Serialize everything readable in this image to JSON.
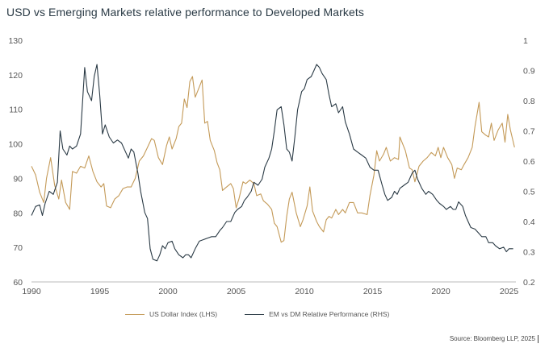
{
  "title": "USD vs Emerging Markets relative performance to Developed Markets",
  "source": "Source: Bloomberg LLP, 2025",
  "colors": {
    "usd": "#c49a58",
    "em": "#2a3a45",
    "axis": "#bbbbbb"
  },
  "chart_data": {
    "type": "line",
    "title": "USD vs Emerging Markets relative performance to Developed Markets",
    "xlim": [
      1990,
      2025.5
    ],
    "x_ticks": [
      "1990",
      "1995",
      "2000",
      "2005",
      "2010",
      "2015",
      "2020",
      "2025"
    ],
    "y_left": {
      "lim": [
        60,
        130
      ],
      "ticks": [
        "60",
        "70",
        "80",
        "90",
        "100",
        "110",
        "120",
        "130"
      ]
    },
    "y_right": {
      "lim": [
        0.2,
        1.0
      ],
      "ticks": [
        "0.2",
        "0.3",
        "0.4",
        "0.5",
        "0.6",
        "0.7",
        "0.8",
        "0.9",
        "1"
      ]
    },
    "grid": false,
    "legend_position": "bottom",
    "series": [
      {
        "name": "US Dollar Index (LHS)",
        "axis": "left",
        "points": [
          [
            1990.0,
            93.5
          ],
          [
            1990.3,
            91
          ],
          [
            1990.6,
            86
          ],
          [
            1990.9,
            83
          ],
          [
            1991.1,
            90
          ],
          [
            1991.4,
            96
          ],
          [
            1991.7,
            88
          ],
          [
            1992.0,
            84
          ],
          [
            1992.2,
            89.5
          ],
          [
            1992.5,
            83
          ],
          [
            1992.8,
            81
          ],
          [
            1993.0,
            92
          ],
          [
            1993.3,
            91.5
          ],
          [
            1993.6,
            93.5
          ],
          [
            1993.9,
            93
          ],
          [
            1994.2,
            96.5
          ],
          [
            1994.5,
            92
          ],
          [
            1994.8,
            89
          ],
          [
            1995.1,
            87.5
          ],
          [
            1995.3,
            88.5
          ],
          [
            1995.5,
            82
          ],
          [
            1995.8,
            81.5
          ],
          [
            1996.1,
            84
          ],
          [
            1996.4,
            85
          ],
          [
            1996.7,
            87
          ],
          [
            1997.0,
            87.5
          ],
          [
            1997.3,
            87.5
          ],
          [
            1997.6,
            90
          ],
          [
            1997.9,
            95
          ],
          [
            1998.2,
            96.5
          ],
          [
            1998.5,
            99
          ],
          [
            1998.8,
            101.5
          ],
          [
            1999.0,
            101
          ],
          [
            1999.3,
            96
          ],
          [
            1999.6,
            94
          ],
          [
            1999.9,
            99.5
          ],
          [
            2000.1,
            102
          ],
          [
            2000.3,
            98.5
          ],
          [
            2000.6,
            101.5
          ],
          [
            2000.8,
            105
          ],
          [
            2001.0,
            106
          ],
          [
            2001.2,
            113
          ],
          [
            2001.4,
            110.5
          ],
          [
            2001.6,
            118
          ],
          [
            2001.8,
            119.5
          ],
          [
            2002.0,
            113.5
          ],
          [
            2002.3,
            116.5
          ],
          [
            2002.5,
            118.5
          ],
          [
            2002.7,
            106
          ],
          [
            2002.9,
            106.5
          ],
          [
            2003.1,
            101
          ],
          [
            2003.4,
            98
          ],
          [
            2003.6,
            94.5
          ],
          [
            2003.8,
            92.5
          ],
          [
            2004.0,
            86.5
          ],
          [
            2004.3,
            87.5
          ],
          [
            2004.6,
            88.5
          ],
          [
            2004.8,
            87
          ],
          [
            2005.0,
            81.5
          ],
          [
            2005.2,
            84
          ],
          [
            2005.5,
            89
          ],
          [
            2005.7,
            88.5
          ],
          [
            2006.0,
            89.5
          ],
          [
            2006.3,
            88.5
          ],
          [
            2006.5,
            85
          ],
          [
            2006.8,
            85.5
          ],
          [
            2007.0,
            83.5
          ],
          [
            2007.3,
            82.5
          ],
          [
            2007.6,
            81
          ],
          [
            2007.8,
            77
          ],
          [
            2008.0,
            76
          ],
          [
            2008.3,
            71.5
          ],
          [
            2008.5,
            72
          ],
          [
            2008.7,
            79
          ],
          [
            2008.9,
            84
          ],
          [
            2009.1,
            86
          ],
          [
            2009.4,
            80
          ],
          [
            2009.7,
            76
          ],
          [
            2009.9,
            78
          ],
          [
            2010.2,
            82
          ],
          [
            2010.4,
            87.5
          ],
          [
            2010.6,
            80.5
          ],
          [
            2010.9,
            77.5
          ],
          [
            2011.1,
            76
          ],
          [
            2011.4,
            74.5
          ],
          [
            2011.6,
            78
          ],
          [
            2011.8,
            79
          ],
          [
            2012.0,
            78.5
          ],
          [
            2012.3,
            81
          ],
          [
            2012.5,
            79.5
          ],
          [
            2012.8,
            81
          ],
          [
            2013.0,
            80
          ],
          [
            2013.3,
            83
          ],
          [
            2013.6,
            83
          ],
          [
            2013.9,
            80
          ],
          [
            2014.2,
            80
          ],
          [
            2014.6,
            79.5
          ],
          [
            2014.8,
            85
          ],
          [
            2015.1,
            91
          ],
          [
            2015.3,
            98
          ],
          [
            2015.5,
            95
          ],
          [
            2015.8,
            97
          ],
          [
            2016.0,
            99
          ],
          [
            2016.3,
            95
          ],
          [
            2016.6,
            96
          ],
          [
            2016.9,
            95.5
          ],
          [
            2017.0,
            102
          ],
          [
            2017.2,
            100
          ],
          [
            2017.4,
            98
          ],
          [
            2017.7,
            93
          ],
          [
            2017.9,
            92.5
          ],
          [
            2018.1,
            89
          ],
          [
            2018.4,
            93.5
          ],
          [
            2018.7,
            95
          ],
          [
            2019.0,
            96
          ],
          [
            2019.3,
            97.5
          ],
          [
            2019.6,
            96.5
          ],
          [
            2019.8,
            99
          ],
          [
            2020.0,
            96
          ],
          [
            2020.2,
            99
          ],
          [
            2020.5,
            96
          ],
          [
            2020.8,
            94
          ],
          [
            2021.0,
            90
          ],
          [
            2021.2,
            93
          ],
          [
            2021.5,
            92.5
          ],
          [
            2021.7,
            94
          ],
          [
            2022.0,
            96
          ],
          [
            2022.3,
            99
          ],
          [
            2022.5,
            105
          ],
          [
            2022.8,
            112
          ],
          [
            2023.0,
            103.5
          ],
          [
            2023.3,
            102.5
          ],
          [
            2023.5,
            102
          ],
          [
            2023.7,
            106
          ],
          [
            2023.9,
            101
          ],
          [
            2024.2,
            104
          ],
          [
            2024.5,
            106
          ],
          [
            2024.7,
            100.5
          ],
          [
            2024.9,
            108.5
          ],
          [
            2025.1,
            104
          ],
          [
            2025.4,
            99
          ]
        ]
      },
      {
        "name": "EM vs DM Relative Performance (RHS)",
        "axis": "right",
        "points": [
          [
            1990.0,
            0.42
          ],
          [
            1990.3,
            0.45
          ],
          [
            1990.6,
            0.455
          ],
          [
            1990.8,
            0.42
          ],
          [
            1991.0,
            0.46
          ],
          [
            1991.3,
            0.5
          ],
          [
            1991.6,
            0.49
          ],
          [
            1991.9,
            0.53
          ],
          [
            1992.1,
            0.7
          ],
          [
            1992.3,
            0.64
          ],
          [
            1992.6,
            0.62
          ],
          [
            1992.8,
            0.65
          ],
          [
            1993.0,
            0.64
          ],
          [
            1993.3,
            0.65
          ],
          [
            1993.6,
            0.69
          ],
          [
            1993.9,
            0.91
          ],
          [
            1994.1,
            0.83
          ],
          [
            1994.4,
            0.8
          ],
          [
            1994.6,
            0.88
          ],
          [
            1994.8,
            0.92
          ],
          [
            1995.0,
            0.82
          ],
          [
            1995.2,
            0.69
          ],
          [
            1995.4,
            0.72
          ],
          [
            1995.7,
            0.68
          ],
          [
            1996.0,
            0.66
          ],
          [
            1996.3,
            0.67
          ],
          [
            1996.6,
            0.66
          ],
          [
            1996.9,
            0.63
          ],
          [
            1997.1,
            0.61
          ],
          [
            1997.3,
            0.64
          ],
          [
            1997.5,
            0.63
          ],
          [
            1997.8,
            0.56
          ],
          [
            1998.0,
            0.5
          ],
          [
            1998.3,
            0.43
          ],
          [
            1998.5,
            0.41
          ],
          [
            1998.7,
            0.31
          ],
          [
            1998.9,
            0.275
          ],
          [
            1999.2,
            0.27
          ],
          [
            1999.4,
            0.29
          ],
          [
            1999.6,
            0.32
          ],
          [
            1999.8,
            0.31
          ],
          [
            2000.0,
            0.33
          ],
          [
            2000.3,
            0.335
          ],
          [
            2000.5,
            0.31
          ],
          [
            2000.8,
            0.29
          ],
          [
            2001.1,
            0.28
          ],
          [
            2001.3,
            0.29
          ],
          [
            2001.5,
            0.29
          ],
          [
            2001.7,
            0.28
          ],
          [
            2002.0,
            0.31
          ],
          [
            2002.3,
            0.335
          ],
          [
            2002.6,
            0.34
          ],
          [
            2002.9,
            0.345
          ],
          [
            2003.2,
            0.35
          ],
          [
            2003.5,
            0.35
          ],
          [
            2003.8,
            0.37
          ],
          [
            2004.0,
            0.38
          ],
          [
            2004.3,
            0.4
          ],
          [
            2004.6,
            0.4
          ],
          [
            2004.9,
            0.43
          ],
          [
            2005.1,
            0.44
          ],
          [
            2005.4,
            0.45
          ],
          [
            2005.6,
            0.47
          ],
          [
            2005.8,
            0.48
          ],
          [
            2006.1,
            0.5
          ],
          [
            2006.3,
            0.53
          ],
          [
            2006.6,
            0.52
          ],
          [
            2006.9,
            0.54
          ],
          [
            2007.1,
            0.58
          ],
          [
            2007.4,
            0.61
          ],
          [
            2007.6,
            0.64
          ],
          [
            2007.8,
            0.7
          ],
          [
            2008.0,
            0.77
          ],
          [
            2008.3,
            0.78
          ],
          [
            2008.5,
            0.72
          ],
          [
            2008.7,
            0.64
          ],
          [
            2008.9,
            0.63
          ],
          [
            2009.1,
            0.6
          ],
          [
            2009.3,
            0.68
          ],
          [
            2009.5,
            0.77
          ],
          [
            2009.8,
            0.83
          ],
          [
            2010.0,
            0.84
          ],
          [
            2010.2,
            0.87
          ],
          [
            2010.5,
            0.88
          ],
          [
            2010.7,
            0.9
          ],
          [
            2010.9,
            0.92
          ],
          [
            2011.1,
            0.91
          ],
          [
            2011.3,
            0.89
          ],
          [
            2011.6,
            0.87
          ],
          [
            2011.8,
            0.82
          ],
          [
            2012.0,
            0.78
          ],
          [
            2012.3,
            0.79
          ],
          [
            2012.5,
            0.76
          ],
          [
            2012.8,
            0.78
          ],
          [
            2013.0,
            0.73
          ],
          [
            2013.3,
            0.69
          ],
          [
            2013.6,
            0.64
          ],
          [
            2013.9,
            0.63
          ],
          [
            2014.2,
            0.62
          ],
          [
            2014.5,
            0.61
          ],
          [
            2014.8,
            0.58
          ],
          [
            2015.1,
            0.57
          ],
          [
            2015.4,
            0.57
          ],
          [
            2015.7,
            0.52
          ],
          [
            2015.9,
            0.49
          ],
          [
            2016.1,
            0.47
          ],
          [
            2016.4,
            0.48
          ],
          [
            2016.6,
            0.5
          ],
          [
            2016.8,
            0.49
          ],
          [
            2017.0,
            0.51
          ],
          [
            2017.3,
            0.52
          ],
          [
            2017.6,
            0.53
          ],
          [
            2017.9,
            0.56
          ],
          [
            2018.1,
            0.57
          ],
          [
            2018.3,
            0.54
          ],
          [
            2018.6,
            0.51
          ],
          [
            2018.9,
            0.49
          ],
          [
            2019.1,
            0.5
          ],
          [
            2019.4,
            0.49
          ],
          [
            2019.7,
            0.47
          ],
          [
            2019.9,
            0.46
          ],
          [
            2020.2,
            0.45
          ],
          [
            2020.4,
            0.44
          ],
          [
            2020.7,
            0.45
          ],
          [
            2020.9,
            0.44
          ],
          [
            2021.1,
            0.44
          ],
          [
            2021.3,
            0.465
          ],
          [
            2021.6,
            0.45
          ],
          [
            2021.8,
            0.42
          ],
          [
            2022.0,
            0.4
          ],
          [
            2022.2,
            0.38
          ],
          [
            2022.5,
            0.375
          ],
          [
            2022.8,
            0.36
          ],
          [
            2023.0,
            0.35
          ],
          [
            2023.3,
            0.35
          ],
          [
            2023.5,
            0.33
          ],
          [
            2023.8,
            0.33
          ],
          [
            2024.0,
            0.32
          ],
          [
            2024.3,
            0.31
          ],
          [
            2024.6,
            0.315
          ],
          [
            2024.8,
            0.3
          ],
          [
            2025.0,
            0.31
          ],
          [
            2025.3,
            0.31
          ]
        ]
      }
    ]
  }
}
